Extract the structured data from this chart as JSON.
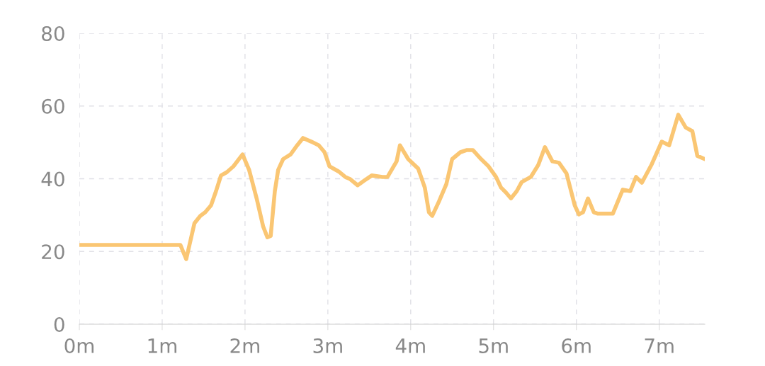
{
  "chart_data": {
    "type": "line",
    "xlim": [
      0,
      7.55
    ],
    "ylim": [
      0,
      80
    ],
    "xticks": [
      {
        "value": 0,
        "label": "0m"
      },
      {
        "value": 1,
        "label": "1m"
      },
      {
        "value": 2,
        "label": "2m"
      },
      {
        "value": 3,
        "label": "3m"
      },
      {
        "value": 4,
        "label": "4m"
      },
      {
        "value": 5,
        "label": "5m"
      },
      {
        "value": 6,
        "label": "6m"
      },
      {
        "value": 7,
        "label": "7m"
      }
    ],
    "yticks": [
      0,
      20,
      40,
      60,
      80
    ],
    "grid": true,
    "marker": "none",
    "line_style": "solid",
    "series": [
      {
        "color": "#fac673",
        "x": [
          0,
          1.22,
          1.29,
          1.39,
          1.46,
          1.52,
          1.59,
          1.65,
          1.71,
          1.78,
          1.86,
          1.97,
          2.05,
          2.14,
          2.22,
          2.27,
          2.31,
          2.36,
          2.4,
          2.46,
          2.55,
          2.63,
          2.7,
          2.8,
          2.89,
          2.96,
          3.02,
          3.13,
          3.21,
          3.27,
          3.36,
          3.44,
          3.53,
          3.66,
          3.72,
          3.83,
          3.87,
          3.97,
          4.09,
          4.17,
          4.22,
          4.26,
          4.34,
          4.43,
          4.5,
          4.6,
          4.68,
          4.75,
          4.85,
          4.94,
          5.03,
          5.09,
          5.15,
          5.21,
          5.28,
          5.34,
          5.45,
          5.54,
          5.62,
          5.71,
          5.79,
          5.88,
          5.98,
          6.03,
          6.08,
          6.14,
          6.21,
          6.26,
          6.44,
          6.56,
          6.65,
          6.72,
          6.79,
          6.91,
          7.03,
          7.12,
          7.23,
          7.32,
          7.4,
          7.46,
          7.55
        ],
        "values": [
          21.8,
          21.8,
          17.9,
          27.8,
          29.8,
          30.8,
          32.7,
          36.6,
          40.9,
          41.8,
          43.4,
          46.7,
          42.4,
          34.6,
          26.8,
          23.9,
          24.3,
          36.6,
          42.4,
          45.4,
          46.7,
          49.2,
          51.2,
          50.2,
          49.2,
          47.3,
          43.4,
          42.0,
          40.5,
          39.9,
          38.2,
          39.5,
          40.9,
          40.5,
          40.5,
          44.8,
          49.2,
          45.4,
          42.8,
          37.6,
          30.8,
          29.8,
          33.7,
          38.5,
          45.4,
          47.3,
          47.9,
          47.9,
          45.4,
          43.4,
          40.5,
          37.6,
          36.2,
          34.6,
          36.6,
          39.1,
          40.5,
          43.8,
          48.7,
          44.8,
          44.4,
          41.5,
          32.7,
          30.2,
          30.8,
          34.6,
          30.8,
          30.4,
          30.4,
          37.0,
          36.6,
          40.5,
          38.9,
          44.0,
          50.2,
          49.2,
          57.6,
          54.1,
          53.1,
          46.3,
          45.4
        ]
      }
    ]
  }
}
